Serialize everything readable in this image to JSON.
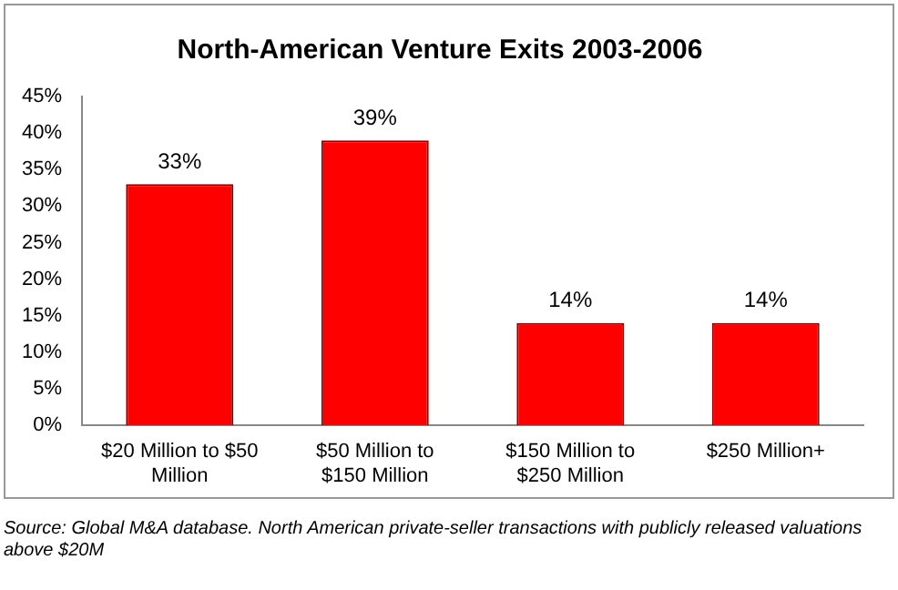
{
  "chart_data": {
    "type": "bar",
    "title": "North-American Venture Exits 2003-2006",
    "categories": [
      "$20 Million to $50 Million",
      "$50 Million to $150 Million",
      "$150 Million to $250 Million",
      "$250 Million+"
    ],
    "values": [
      33,
      39,
      14,
      14
    ],
    "color": "#ff0000",
    "value_labels": [
      "33%",
      "39%",
      "14%",
      "14%"
    ],
    "ylim": [
      0,
      45
    ],
    "yticks": [
      {
        "value": 0,
        "label": "0%"
      },
      {
        "value": 5,
        "label": "5%"
      },
      {
        "value": 10,
        "label": "10%"
      },
      {
        "value": 15,
        "label": "15%"
      },
      {
        "value": 20,
        "label": "20%"
      },
      {
        "value": 25,
        "label": "25%"
      },
      {
        "value": 30,
        "label": "30%"
      },
      {
        "value": 35,
        "label": "35%"
      },
      {
        "value": 40,
        "label": "40%"
      },
      {
        "value": 45,
        "label": "45%"
      }
    ],
    "grid": false,
    "legend": false,
    "annotations": [
      "Source: Global M&A database.  North American private-seller transactions with publicly released valuations above $20M"
    ]
  }
}
